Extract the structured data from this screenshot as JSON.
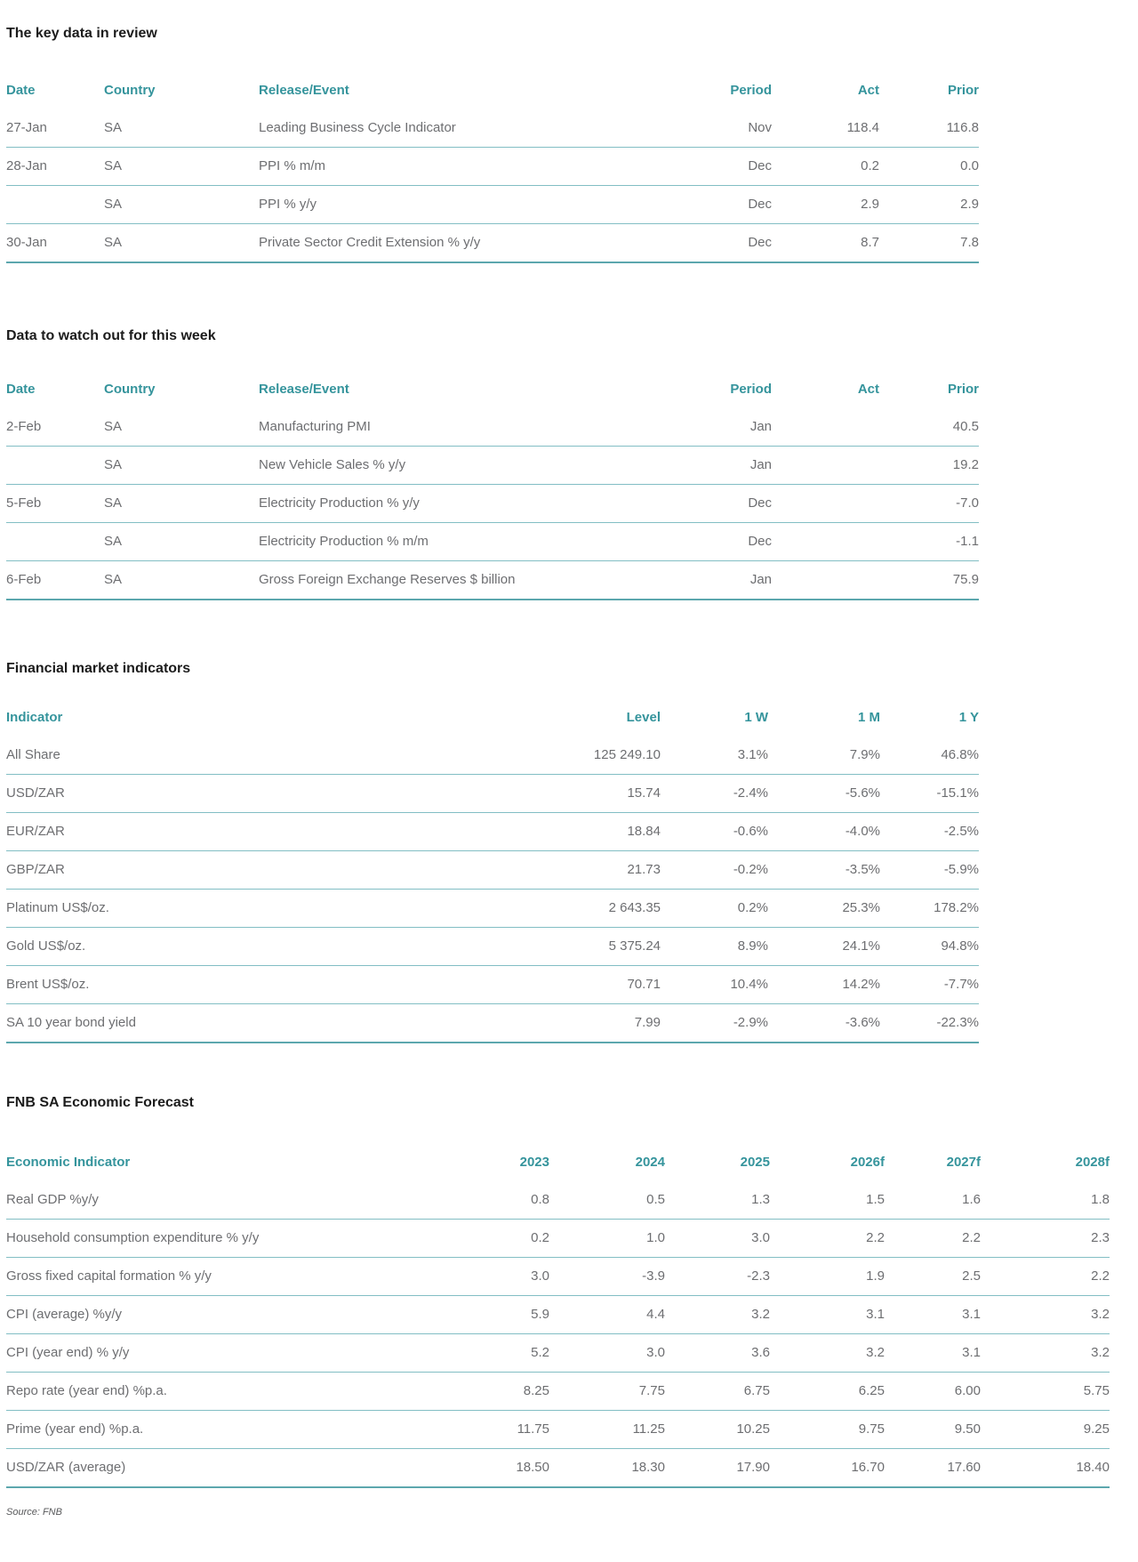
{
  "meta": {
    "source_note": "Source: FNB"
  },
  "colors": {
    "accent_teal": "#35949C",
    "row_line": "#82BEC4",
    "table_end_line": "#5CA7AE",
    "body_text": "#6D6E71",
    "title_text": "#1C1C1C"
  },
  "sections": [
    {
      "title": "The key data in review",
      "columns": [
        "Date",
        "Country",
        "Release/Event",
        "Period",
        "Act",
        "Prior"
      ],
      "numeric_from": 3,
      "rows": [
        [
          "27-Jan",
          "SA",
          "Leading Business Cycle Indicator",
          "Nov",
          "118.4",
          "116.8"
        ],
        [
          "28-Jan",
          "SA",
          "PPI % m/m",
          "Dec",
          "0.2",
          "0.0"
        ],
        [
          "",
          "SA",
          "PPI % y/y",
          "Dec",
          "2.9",
          "2.9"
        ],
        [
          "30-Jan",
          "SA",
          "Private Sector Credit Extension % y/y",
          "Dec",
          "8.7",
          "7.8"
        ]
      ]
    },
    {
      "title": "Data to watch out for this week",
      "columns": [
        "Date",
        "Country",
        "Release/Event",
        "Period",
        "Act",
        "Prior"
      ],
      "numeric_from": 3,
      "rows": [
        [
          "2-Feb",
          "SA",
          "Manufacturing PMI",
          "Jan",
          "",
          "40.5"
        ],
        [
          "",
          "SA",
          "New Vehicle Sales % y/y",
          "Jan",
          "",
          "19.2"
        ],
        [
          "5-Feb",
          "SA",
          "Electricity Production % y/y",
          "Dec",
          "",
          "-7.0"
        ],
        [
          "",
          "SA",
          "Electricity Production % m/m",
          "Dec",
          "",
          "-1.1"
        ],
        [
          "6-Feb",
          "SA",
          "Gross Foreign Exchange Reserves $ billion",
          "Jan",
          "",
          "75.9"
        ]
      ]
    },
    {
      "title": "Financial market indicators",
      "columns": [
        "Indicator",
        "Level",
        "1 W",
        "1 M",
        "1 Y"
      ],
      "numeric_from": 1,
      "rows": [
        [
          "All Share",
          "125 249.10",
          "3.1%",
          "7.9%",
          "46.8%"
        ],
        [
          "USD/ZAR",
          "15.74",
          "-2.4%",
          "-5.6%",
          "-15.1%"
        ],
        [
          "EUR/ZAR",
          "18.84",
          "-0.6%",
          "-4.0%",
          "-2.5%"
        ],
        [
          "GBP/ZAR",
          "21.73",
          "-0.2%",
          "-3.5%",
          "-5.9%"
        ],
        [
          "Platinum US$/oz.",
          "2 643.35",
          "0.2%",
          "25.3%",
          "178.2%"
        ],
        [
          "Gold US$/oz.",
          "5 375.24",
          "8.9%",
          "24.1%",
          "94.8%"
        ],
        [
          "Brent US$/oz.",
          "70.71",
          "10.4%",
          "14.2%",
          "-7.7%"
        ],
        [
          "SA 10 year bond yield",
          "7.99",
          "-2.9%",
          "-3.6%",
          "-22.3%"
        ]
      ]
    },
    {
      "title": "FNB SA Economic Forecast",
      "columns": [
        "Economic Indicator",
        "2023",
        "2024",
        "2025",
        "2026f",
        "2027f",
        "2028f"
      ],
      "numeric_from": 1,
      "rows": [
        [
          "Real GDP %y/y",
          "0.8",
          "0.5",
          "1.3",
          "1.5",
          "1.6",
          "1.8"
        ],
        [
          "Household consumption expenditure % y/y",
          "0.2",
          "1.0",
          "3.0",
          "2.2",
          "2.2",
          "2.3"
        ],
        [
          "Gross fixed capital formation % y/y",
          "3.0",
          "-3.9",
          "-2.3",
          "1.9",
          "2.5",
          "2.2"
        ],
        [
          "CPI (average) %y/y",
          "5.9",
          "4.4",
          "3.2",
          "3.1",
          "3.1",
          "3.2"
        ],
        [
          "CPI (year end) % y/y",
          "5.2",
          "3.0",
          "3.6",
          "3.2",
          "3.1",
          "3.2"
        ],
        [
          "Repo rate (year end) %p.a.",
          "8.25",
          "7.75",
          "6.75",
          "6.25",
          "6.00",
          "5.75"
        ],
        [
          "Prime (year end) %p.a.",
          "11.75",
          "11.25",
          "10.25",
          "9.75",
          "9.50",
          "9.25"
        ],
        [
          "USD/ZAR (average)",
          "18.50",
          "18.30",
          "17.90",
          "16.70",
          "17.60",
          "18.40"
        ]
      ]
    }
  ]
}
